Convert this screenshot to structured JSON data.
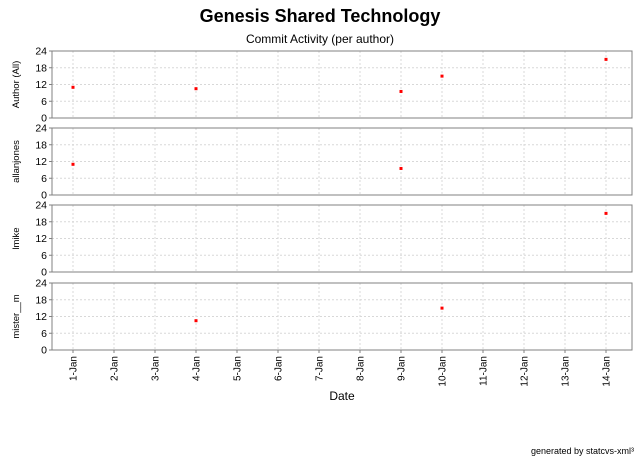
{
  "title": "Genesis Shared Technology",
  "subtitle": "Commit Activity (per author)",
  "footer": "generated by statcvs-xml³",
  "colors": {
    "point": "#ff0000",
    "grid": "#d8d8d8",
    "frame": "#808080",
    "background": "#ffffff"
  },
  "chart_data": {
    "type": "scatter",
    "xlabel": "Date",
    "x_ticks": [
      "1-Jan",
      "2-Jan",
      "3-Jan",
      "4-Jan",
      "5-Jan",
      "6-Jan",
      "7-Jan",
      "8-Jan",
      "9-Jan",
      "10-Jan",
      "11-Jan",
      "12-Jan",
      "13-Jan",
      "14-Jan"
    ],
    "ylim": [
      0,
      24
    ],
    "y_ticks": [
      0,
      6,
      12,
      18,
      24
    ],
    "grid": true,
    "series": [
      {
        "name": "Author (All)",
        "points": [
          {
            "x": "1-Jan",
            "y": 11
          },
          {
            "x": "4-Jan",
            "y": 10.5
          },
          {
            "x": "9-Jan",
            "y": 9.5
          },
          {
            "x": "10-Jan",
            "y": 15
          },
          {
            "x": "14-Jan",
            "y": 21
          }
        ]
      },
      {
        "name": "allanjones",
        "points": [
          {
            "x": "1-Jan",
            "y": 11
          },
          {
            "x": "9-Jan",
            "y": 9.5
          }
        ]
      },
      {
        "name": "lmike",
        "points": [
          {
            "x": "14-Jan",
            "y": 21
          }
        ]
      },
      {
        "name": "mister__m",
        "points": [
          {
            "x": "4-Jan",
            "y": 10.5
          },
          {
            "x": "10-Jan",
            "y": 15
          }
        ]
      }
    ]
  }
}
